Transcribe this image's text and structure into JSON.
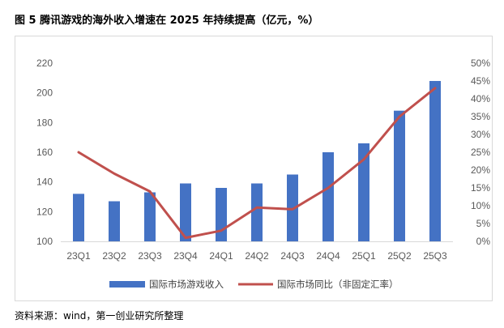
{
  "title": "图 5 腾讯游戏的海外收入增速在 2025 年持续提高（亿元，%）",
  "source": "资料来源：wind，第一创业研究所整理",
  "chart_data": {
    "type": "bar",
    "title": "图 5 腾讯游戏的海外收入增速在 2025 年持续提高（亿元，%）",
    "categories": [
      "23Q1",
      "23Q2",
      "23Q3",
      "23Q4",
      "24Q1",
      "24Q2",
      "24Q3",
      "24Q4",
      "25Q1",
      "25Q2",
      "25Q3"
    ],
    "series": [
      {
        "name": "国际市场游戏收入",
        "type": "bar",
        "axis": "left",
        "color": "#4472c4",
        "values": [
          132,
          127,
          133,
          139,
          136,
          139,
          145,
          160,
          166,
          188,
          208
        ]
      },
      {
        "name": "国际市场同比（非固定汇率）",
        "type": "line",
        "axis": "right",
        "color": "#c0504d",
        "values": [
          25,
          19,
          14,
          1,
          3,
          9.5,
          9,
          15,
          23,
          35,
          43
        ]
      }
    ],
    "y_left": {
      "min": 100,
      "max": 220,
      "ticks": [
        "100",
        "120",
        "140",
        "160",
        "180",
        "200",
        "220"
      ]
    },
    "y_right": {
      "min": 0,
      "max": 50,
      "ticks": [
        "0%",
        "5%",
        "10%",
        "15%",
        "20%",
        "25%",
        "30%",
        "35%",
        "40%",
        "45%",
        "50%"
      ]
    },
    "legend_position": "bottom",
    "grid": false
  }
}
